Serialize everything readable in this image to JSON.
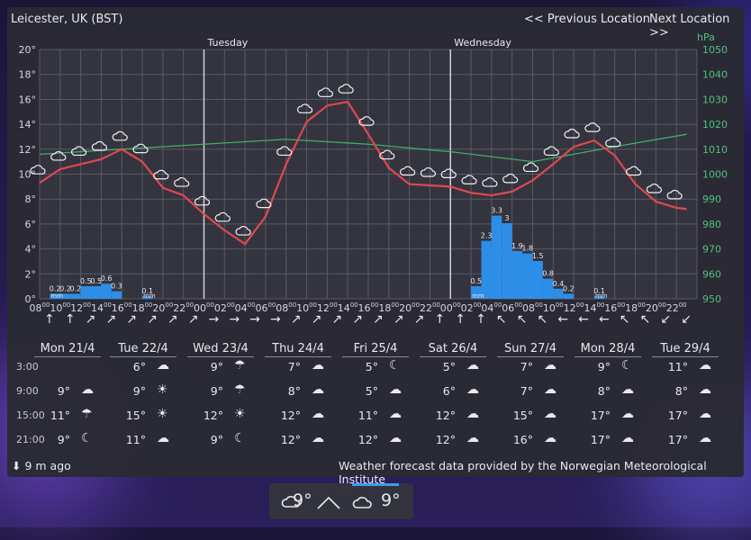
{
  "header": {
    "location": "Leicester, UK (BST)",
    "prev": "<< Previous Location",
    "next": "Next Location >>"
  },
  "chart_data": {
    "type": "line",
    "temp_axis": {
      "ticks": [
        "0°",
        "2°",
        "4°",
        "6°",
        "8°",
        "10°",
        "12°",
        "14°",
        "16°",
        "18°",
        "20°"
      ],
      "ylim": [
        0,
        20
      ]
    },
    "pressure_axis": {
      "unit": "hPa",
      "ticks": [
        "950",
        "960",
        "970",
        "980",
        "990",
        "1000",
        "1010",
        "1020",
        "1030",
        "1040",
        "1050"
      ],
      "ylim": [
        950,
        1050
      ]
    },
    "hour_ticks": [
      "08",
      "10",
      "12",
      "14",
      "16",
      "18",
      "20",
      "22",
      "00",
      "02",
      "04",
      "06",
      "08",
      "10",
      "12",
      "14",
      "16",
      "18",
      "20",
      "22",
      "00",
      "02",
      "04",
      "06",
      "08",
      "10",
      "12",
      "14",
      "16",
      "18",
      "20",
      "22"
    ],
    "day_markers": [
      {
        "label": "Tuesday",
        "hour_index": 16
      },
      {
        "label": "Wednesday",
        "hour_index": 40
      }
    ],
    "temperature": {
      "hours": [
        0,
        2,
        4,
        6,
        8,
        10,
        12,
        14,
        16,
        18,
        20,
        22,
        24,
        26,
        28,
        30,
        32,
        34,
        36,
        38,
        40,
        42,
        44,
        46,
        48,
        50,
        52,
        54,
        56,
        58,
        60,
        62,
        63
      ],
      "values": [
        9.3,
        10.4,
        10.8,
        11.2,
        12.0,
        11.0,
        8.9,
        8.3,
        6.8,
        5.5,
        4.4,
        6.6,
        10.8,
        14.2,
        15.5,
        15.8,
        13.2,
        10.5,
        9.2,
        9.1,
        9.0,
        8.5,
        8.3,
        8.6,
        9.5,
        10.8,
        12.2,
        12.7,
        11.5,
        9.2,
        7.8,
        7.3,
        7.2
      ],
      "color": "#e0484f"
    },
    "pressure": {
      "hours": [
        0,
        8,
        16,
        24,
        32,
        40,
        48,
        56,
        63
      ],
      "values": [
        1008,
        1010,
        1012,
        1014,
        1012,
        1009,
        1005,
        1011,
        1016
      ],
      "color": "#3fae6b"
    },
    "precipitation": {
      "color": "#2d8ee8",
      "unit": "mm",
      "bars": [
        {
          "hour": 1,
          "value": 0.2,
          "label": "0.2"
        },
        {
          "hour": 2,
          "value": 0.2,
          "label": "0.2"
        },
        {
          "hour": 3,
          "value": 0.2,
          "label": "0.2"
        },
        {
          "hour": 4,
          "value": 0.5,
          "label": "0.5"
        },
        {
          "hour": 5,
          "value": 0.5,
          "label": "0.5"
        },
        {
          "hour": 6,
          "value": 0.6,
          "label": "0.6"
        },
        {
          "hour": 7,
          "value": 0.3,
          "label": "0.3"
        },
        {
          "hour": 10,
          "value": 0.1,
          "label": "0.1"
        },
        {
          "hour": 42,
          "value": 0.5,
          "label": "0.5"
        },
        {
          "hour": 43,
          "value": 2.3,
          "label": "2.3"
        },
        {
          "hour": 44,
          "value": 3.3,
          "label": "3.3"
        },
        {
          "hour": 45,
          "value": 3.0,
          "label": "3"
        },
        {
          "hour": 46,
          "value": 1.9,
          "label": "1.9"
        },
        {
          "hour": 47,
          "value": 1.8,
          "label": "1.8"
        },
        {
          "hour": 48,
          "value": 1.5,
          "label": "1.5"
        },
        {
          "hour": 49,
          "value": 0.8,
          "label": "0.8"
        },
        {
          "hour": 50,
          "value": 0.4,
          "label": "0.4"
        },
        {
          "hour": 51,
          "value": 0.2,
          "label": "0.2"
        },
        {
          "hour": 54,
          "value": 0.1,
          "label": "0.1"
        }
      ],
      "mm_marks": [
        {
          "hour": 1
        },
        {
          "hour": 10
        },
        {
          "hour": 42
        },
        {
          "hour": 54
        }
      ]
    }
  },
  "wind_arrows": [
    "↑",
    "↑",
    "↗",
    "↗",
    "↗",
    "↗",
    "↗",
    "↗",
    "→",
    "→",
    "→",
    "→",
    "↗",
    "↗",
    "↗",
    "↗",
    "↗",
    "↗",
    "↗",
    "↑",
    "↑",
    "↑",
    "↖",
    "↖",
    "↖",
    "←",
    "←",
    "←",
    "↖",
    "↖",
    "↙",
    "↙"
  ],
  "forecast": {
    "days": [
      "Mon 21/4",
      "Tue 22/4",
      "Wed 23/4",
      "Thu 24/4",
      "Fri 25/4",
      "Sat 26/4",
      "Sun 27/4",
      "Mon 28/4",
      "Tue 29/4"
    ],
    "hours": [
      "3:00",
      "9:00",
      "15:00",
      "21:00"
    ],
    "rows": [
      [
        {
          "t": "",
          "i": ""
        },
        {
          "t": "6°",
          "i": "☁"
        },
        {
          "t": "9°",
          "i": "☂"
        },
        {
          "t": "7°",
          "i": "☁"
        },
        {
          "t": "5°",
          "i": "☾"
        },
        {
          "t": "5°",
          "i": "☁"
        },
        {
          "t": "7°",
          "i": "☁"
        },
        {
          "t": "9°",
          "i": "☾"
        },
        {
          "t": "11°",
          "i": "☁"
        }
      ],
      [
        {
          "t": "9°",
          "i": "☁"
        },
        {
          "t": "9°",
          "i": "☀"
        },
        {
          "t": "9°",
          "i": "☂"
        },
        {
          "t": "8°",
          "i": "☁"
        },
        {
          "t": "5°",
          "i": "☁"
        },
        {
          "t": "6°",
          "i": "☁"
        },
        {
          "t": "7°",
          "i": "☁"
        },
        {
          "t": "8°",
          "i": "☁"
        },
        {
          "t": "8°",
          "i": "☁"
        }
      ],
      [
        {
          "t": "11°",
          "i": "☂"
        },
        {
          "t": "15°",
          "i": "☀"
        },
        {
          "t": "12°",
          "i": "☀"
        },
        {
          "t": "12°",
          "i": "☁"
        },
        {
          "t": "11°",
          "i": "☁"
        },
        {
          "t": "12°",
          "i": "☁"
        },
        {
          "t": "15°",
          "i": "☁"
        },
        {
          "t": "17°",
          "i": "☁"
        },
        {
          "t": "17°",
          "i": "☁"
        }
      ],
      [
        {
          "t": "9°",
          "i": "☾"
        },
        {
          "t": "11°",
          "i": "☁"
        },
        {
          "t": "9°",
          "i": "☾"
        },
        {
          "t": "12°",
          "i": "☁"
        },
        {
          "t": "12°",
          "i": "☁"
        },
        {
          "t": "12°",
          "i": "☁"
        },
        {
          "t": "16°",
          "i": "☁"
        },
        {
          "t": "17°",
          "i": "☁"
        },
        {
          "t": "17°",
          "i": "☁"
        }
      ]
    ]
  },
  "footer": {
    "updated_icon": "download-arrow-icon",
    "updated": "9 m ago",
    "credit": "Weather forecast data provided by the Norwegian Meteorological Institute"
  },
  "taskbar": {
    "left_temp": "9°",
    "right_temp": "9°",
    "left_icon": "cloud-moon-icon",
    "right_icon": "cloud-icon"
  }
}
